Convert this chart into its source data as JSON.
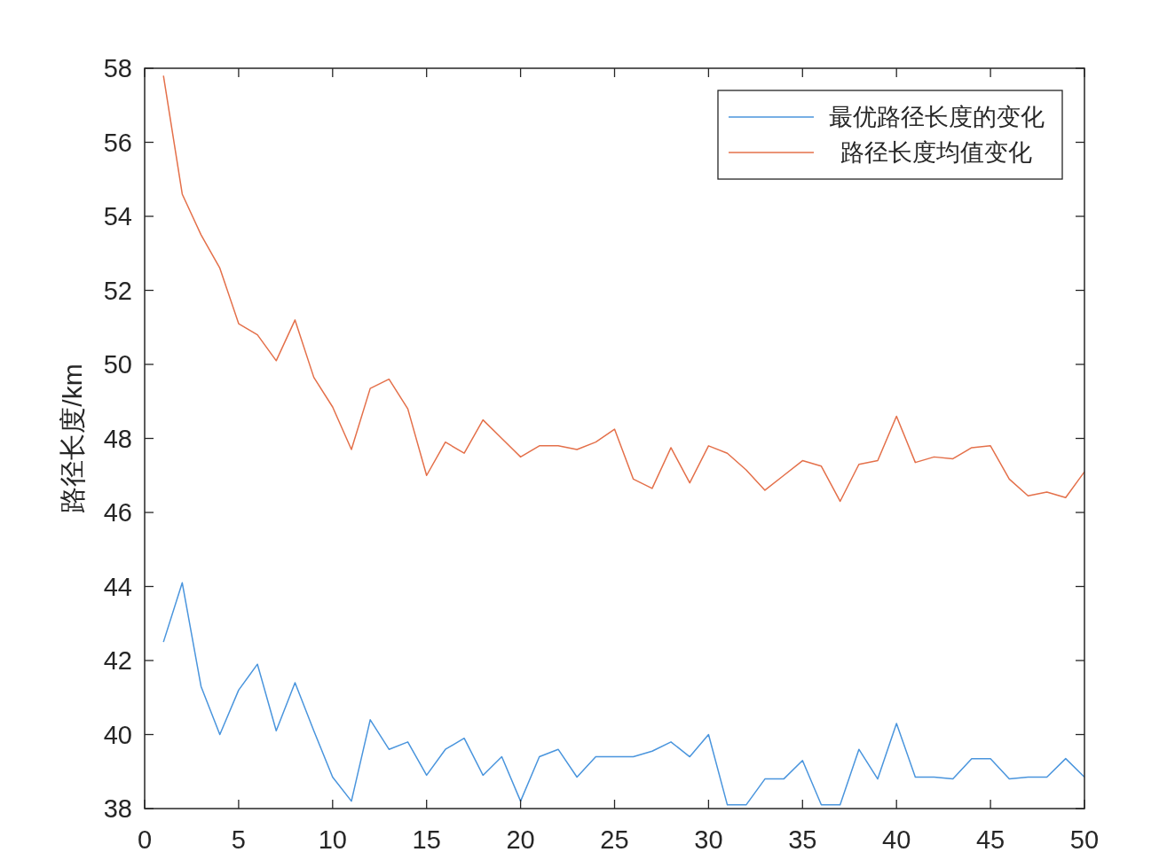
{
  "chart_data": {
    "type": "line",
    "ylabel": "路径长度/km",
    "x": [
      1,
      2,
      3,
      4,
      5,
      6,
      7,
      8,
      9,
      10,
      11,
      12,
      13,
      14,
      15,
      16,
      17,
      18,
      19,
      20,
      21,
      22,
      23,
      24,
      25,
      26,
      27,
      28,
      29,
      30,
      31,
      32,
      33,
      34,
      35,
      36,
      37,
      38,
      39,
      40,
      41,
      42,
      43,
      44,
      45,
      46,
      47,
      48,
      49,
      50
    ],
    "series": [
      {
        "name": "最优路径长度的变化",
        "color": "#4a95dd",
        "values": [
          42.5,
          44.1,
          41.3,
          40.0,
          41.2,
          41.9,
          40.1,
          41.4,
          40.1,
          38.85,
          38.2,
          40.4,
          39.6,
          39.8,
          38.9,
          39.6,
          39.9,
          38.9,
          39.4,
          38.2,
          39.4,
          39.6,
          38.85,
          39.4,
          39.4,
          39.4,
          39.55,
          39.8,
          39.4,
          40.0,
          38.1,
          38.1,
          38.8,
          38.8,
          39.3,
          38.1,
          38.1,
          39.6,
          38.8,
          40.3,
          38.85,
          38.85,
          38.8,
          39.35,
          39.35,
          38.8,
          38.85,
          38.85,
          39.35,
          38.85
        ]
      },
      {
        "name": "路径长度均值变化",
        "color": "#e4704a",
        "values": [
          57.8,
          54.6,
          53.5,
          52.6,
          51.1,
          50.8,
          50.1,
          51.2,
          49.65,
          48.85,
          47.7,
          49.35,
          49.6,
          48.8,
          47.0,
          47.9,
          47.6,
          48.5,
          48.0,
          47.5,
          47.8,
          47.8,
          47.7,
          47.9,
          48.25,
          46.9,
          46.65,
          47.75,
          46.8,
          47.8,
          47.6,
          47.15,
          46.6,
          47.0,
          47.4,
          47.25,
          46.3,
          47.3,
          47.4,
          48.6,
          47.35,
          47.5,
          47.45,
          47.75,
          47.8,
          46.9,
          46.45,
          46.55,
          46.4,
          47.1
        ]
      }
    ],
    "xlim": [
      0,
      50
    ],
    "xticks": [
      0,
      5,
      10,
      15,
      20,
      25,
      30,
      35,
      40,
      45,
      50
    ],
    "ylim": [
      38,
      58
    ],
    "yticks": [
      38,
      40,
      42,
      44,
      46,
      48,
      50,
      52,
      54,
      56,
      58
    ],
    "grid": false,
    "legend": "top right"
  }
}
